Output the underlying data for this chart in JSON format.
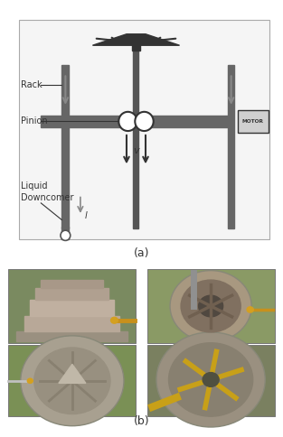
{
  "fig_width": 3.13,
  "fig_height": 4.84,
  "dpi": 100,
  "bg_color": "#ffffff",
  "label_a": "(a)",
  "label_b": "(b)",
  "label_rack": "Rack",
  "label_pinion": "Pinion",
  "label_liquid": "Liquid\nDowncomer",
  "label_motor": "MOTOR",
  "label_v": "v",
  "label_l": "l",
  "diagram_color": "#555555",
  "dark_color": "#333333",
  "motor_box_color": "#d0d0d0"
}
